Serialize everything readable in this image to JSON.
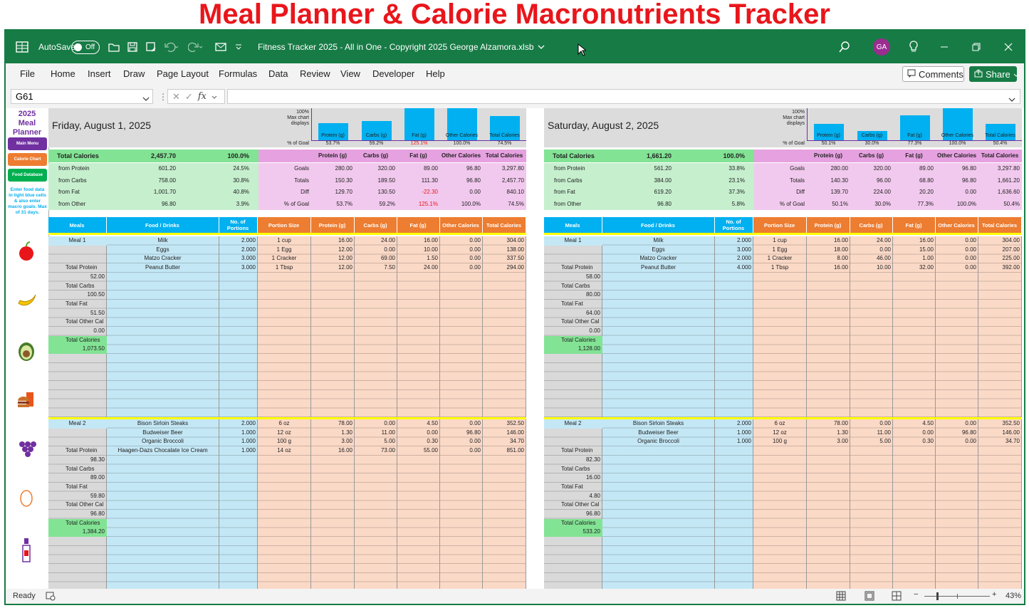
{
  "banner": {
    "title": "Meal Planner & Calorie Macronutrients Tracker"
  },
  "titlebar": {
    "autosave_label": "AutoSave",
    "autosave_state": "Off",
    "file_title": "Fitness Tracker 2025 - All in One - Copyright 2025 George Alzamora.xlsb",
    "avatar_initials": "GA"
  },
  "menu": {
    "items": [
      "File",
      "Home",
      "Insert",
      "Draw",
      "Page Layout",
      "Formulas",
      "Data",
      "Review",
      "View",
      "Developer",
      "Help"
    ],
    "comments_label": "Comments",
    "share_label": "Share"
  },
  "formula_bar": {
    "cell_ref": "G61",
    "formula": ""
  },
  "sidebar": {
    "title_line1": "2025",
    "title_line2": "Meal",
    "title_line3": "Planner",
    "main_menu": "Main Menu",
    "calorie_chart": "Calorie Chart",
    "food_database": "Food Database",
    "note": "Enter food data in light blue cells & also enter macro goals. Max of 31 days.",
    "food_icons": [
      "apple-icon",
      "banana-icon",
      "avocado-icon",
      "fast-food-icon",
      "grapes-icon",
      "egg-icon",
      "bottle-icon"
    ]
  },
  "colors": {
    "excel_green": "#177b45",
    "banner_red": "#e8161b",
    "summary_green": "#82e394",
    "summary_light_green": "#c6efce",
    "goals_pink": "#e6a1e0",
    "goals_light_pink": "#f2c9ee",
    "header_blue": "#00b0f0",
    "header_orange": "#ed7d31",
    "cell_light_blue": "#c4e7f5",
    "cell_peach": "#fbd9c7",
    "bar_blue": "#00b0f0"
  },
  "labels": {
    "chart_max": "100%",
    "chart_caption": "Max chart displays",
    "pct_of_goal": "% of Goal",
    "total_calories": "Total Calories",
    "from_protein": "from Protein",
    "from_carbs": "from Carbs",
    "from_fat": "from Fat",
    "from_other": "from Other",
    "goals": "Goals",
    "totals": "Totals",
    "diff": "Diff",
    "col_meals": "Meals",
    "col_food": "Food / Drinks",
    "col_portions": "No. of Portions",
    "col_portion_size": "Portion Size",
    "col_protein": "Protein (g)",
    "col_carbs": "Carbs (g)",
    "col_fat": "Fat (g)",
    "col_other": "Other Calories",
    "col_total": "Total Calories",
    "total_protein": "Total Protein",
    "total_carbs": "Total Carbs",
    "total_fat": "Total Fat",
    "total_other": "Total Other Cal"
  },
  "days": [
    {
      "date": "Friday, August 1, 2025",
      "total_calories": "2,457.70",
      "total_pct": "100.0%",
      "from": [
        {
          "value": "601.20",
          "pct": "24.5%"
        },
        {
          "value": "758.00",
          "pct": "30.8%"
        },
        {
          "value": "1,001.70",
          "pct": "40.8%"
        },
        {
          "value": "96.80",
          "pct": "3.9%"
        }
      ],
      "macro_headers": [
        "Protein (g)",
        "Carbs (g)",
        "Fat (g)",
        "Other Calories",
        "Total Calories"
      ],
      "goals": [
        "280.00",
        "320.00",
        "89.00",
        "96.80",
        "3,297.80"
      ],
      "totals": [
        "150.30",
        "189.50",
        "111.30",
        "96.80",
        "2,457.70"
      ],
      "diff": [
        "129.70",
        "130.50",
        "-22.30",
        "0.00",
        "840.10"
      ],
      "pct_goal": [
        "53.7%",
        "59.2%",
        "125.1%",
        "100.0%",
        "74.5%"
      ],
      "chart": {
        "labels": [
          "Protein (g)",
          "Carbs (g)",
          "Fat (g)",
          "Other Calories",
          "Total Calories"
        ],
        "pct_labels": [
          "53.7%",
          "59.2%",
          "125.1%",
          "100.0%",
          "74.5%"
        ],
        "values": [
          53.7,
          59.2,
          125.1,
          100.0,
          74.5
        ],
        "max": 100
      },
      "meals": [
        {
          "name": "Meal 1",
          "items": [
            {
              "food": "Milk",
              "portions": "2.000",
              "size": "1 cup",
              "protein": "16.00",
              "carbs": "24.00",
              "fat": "16.00",
              "other": "0.00",
              "total": "304.00"
            },
            {
              "food": "Eggs",
              "portions": "2.000",
              "size": "1 Egg",
              "protein": "12.00",
              "carbs": "0.00",
              "fat": "10.00",
              "other": "0.00",
              "total": "138.00"
            },
            {
              "food": "Matzo Cracker",
              "portions": "3.000",
              "size": "1 Cracker",
              "protein": "12.00",
              "carbs": "69.00",
              "fat": "1.50",
              "other": "0.00",
              "total": "337.50"
            },
            {
              "food": "Peanut Butter",
              "portions": "3.000",
              "size": "1 Tbsp",
              "protein": "12.00",
              "carbs": "7.50",
              "fat": "24.00",
              "other": "0.00",
              "total": "294.00"
            }
          ],
          "total_protein": "52.00",
          "total_carbs": "100.50",
          "total_fat": "51.50",
          "total_other": "0.00",
          "total_calories": "1,073.50"
        },
        {
          "name": "Meal 2",
          "items": [
            {
              "food": "Bison Sirloin Steaks",
              "portions": "2.000",
              "size": "6 oz",
              "protein": "78.00",
              "carbs": "0.00",
              "fat": "4.50",
              "other": "0.00",
              "total": "352.50"
            },
            {
              "food": "Budweiser Beer",
              "portions": "1.000",
              "size": "12 oz",
              "protein": "1.30",
              "carbs": "11.00",
              "fat": "0.00",
              "other": "96.80",
              "total": "146.00"
            },
            {
              "food": "Organic Broccoli",
              "portions": "1.000",
              "size": "100 g",
              "protein": "3.00",
              "carbs": "5.00",
              "fat": "0.30",
              "other": "0.00",
              "total": "34.70"
            },
            {
              "food": "Haagen-Dazs Chocalate Ice Cream",
              "portions": "1.000",
              "size": "14 oz",
              "protein": "16.00",
              "carbs": "73.00",
              "fat": "55.00",
              "other": "0.00",
              "total": "851.00"
            }
          ],
          "total_protein": "98.30",
          "total_carbs": "89.00",
          "total_fat": "59.80",
          "total_other": "96.80",
          "total_calories": "1,384.20"
        }
      ]
    },
    {
      "date": "Saturday, August 2, 2025",
      "total_calories": "1,661.20",
      "total_pct": "100.0%",
      "from": [
        {
          "value": "561.20",
          "pct": "33.8%"
        },
        {
          "value": "384.00",
          "pct": "23.1%"
        },
        {
          "value": "619.20",
          "pct": "37.3%"
        },
        {
          "value": "96.80",
          "pct": "5.8%"
        }
      ],
      "macro_headers": [
        "Protein (g)",
        "Carbs (g)",
        "Fat (g)",
        "Other Calories",
        "Total Calories"
      ],
      "goals": [
        "280.00",
        "320.00",
        "89.00",
        "96.80",
        "3,297.80"
      ],
      "totals": [
        "140.30",
        "96.00",
        "68.80",
        "96.80",
        "1,661.20"
      ],
      "diff": [
        "139.70",
        "224.00",
        "20.20",
        "0.00",
        "1,636.60"
      ],
      "pct_goal": [
        "50.1%",
        "30.0%",
        "77.3%",
        "100.0%",
        "50.4%"
      ],
      "chart": {
        "labels": [
          "Protein (g)",
          "Carbs (g)",
          "Fat (g)",
          "Other Calories",
          "Total Calories"
        ],
        "pct_labels": [
          "50.1%",
          "30.0%",
          "77.3%",
          "100.0%",
          "50.4%"
        ],
        "values": [
          50.1,
          30.0,
          77.3,
          100.0,
          50.4
        ],
        "max": 100
      },
      "meals": [
        {
          "name": "Meal 1",
          "items": [
            {
              "food": "Milk",
              "portions": "2.000",
              "size": "1 cup",
              "protein": "16.00",
              "carbs": "24.00",
              "fat": "16.00",
              "other": "0.00",
              "total": "304.00"
            },
            {
              "food": "Eggs",
              "portions": "3.000",
              "size": "1 Egg",
              "protein": "18.00",
              "carbs": "0.00",
              "fat": "15.00",
              "other": "0.00",
              "total": "207.00"
            },
            {
              "food": "Matzo Cracker",
              "portions": "2.000",
              "size": "1 Cracker",
              "protein": "8.00",
              "carbs": "46.00",
              "fat": "1.00",
              "other": "0.00",
              "total": "225.00"
            },
            {
              "food": "Peanut Butter",
              "portions": "4.000",
              "size": "1 Tbsp",
              "protein": "16.00",
              "carbs": "10.00",
              "fat": "32.00",
              "other": "0.00",
              "total": "392.00"
            }
          ],
          "total_protein": "58.00",
          "total_carbs": "80.00",
          "total_fat": "64.00",
          "total_other": "0.00",
          "total_calories": "1,128.00"
        },
        {
          "name": "Meal 2",
          "items": [
            {
              "food": "Bison Sirloin Steaks",
              "portions": "2.000",
              "size": "6 oz",
              "protein": "78.00",
              "carbs": "0.00",
              "fat": "4.50",
              "other": "0.00",
              "total": "352.50"
            },
            {
              "food": "Budweiser Beer",
              "portions": "1.000",
              "size": "12 oz",
              "protein": "1.30",
              "carbs": "11.00",
              "fat": "0.00",
              "other": "96.80",
              "total": "146.00"
            },
            {
              "food": "Organic Broccoli",
              "portions": "1.000",
              "size": "100 g",
              "protein": "3.00",
              "carbs": "5.00",
              "fat": "0.30",
              "other": "0.00",
              "total": "34.70"
            }
          ],
          "total_protein": "82.30",
          "total_carbs": "16.00",
          "total_fat": "4.80",
          "total_other": "96.80",
          "total_calories": "533.20"
        }
      ]
    }
  ],
  "status": {
    "ready": "Ready",
    "zoom": "43%"
  }
}
